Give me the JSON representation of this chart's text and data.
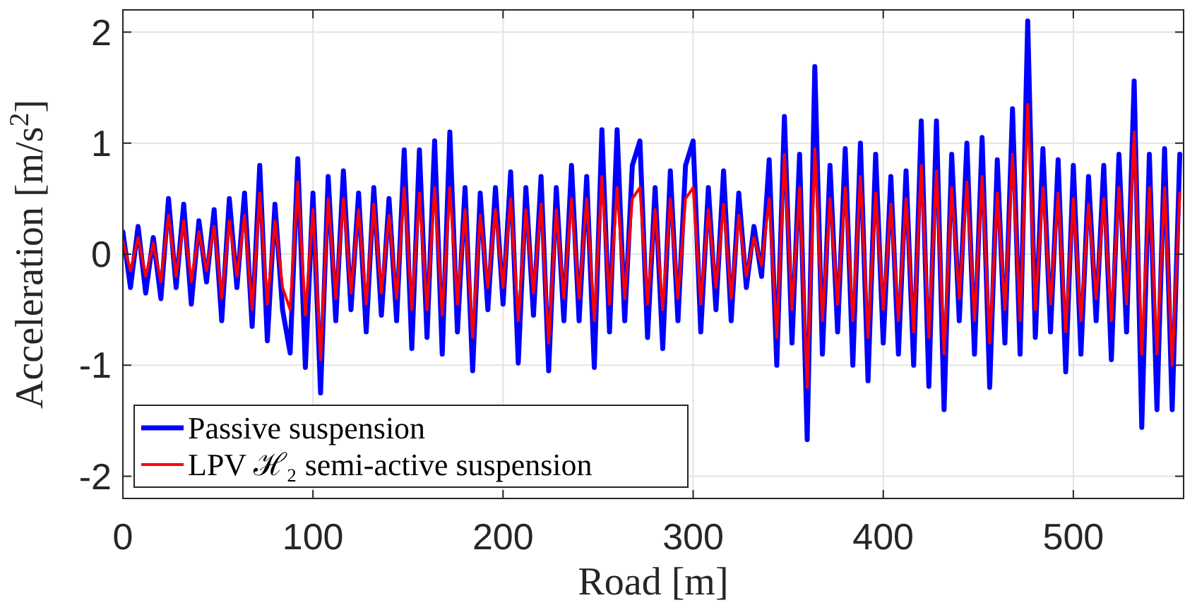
{
  "chart_data": {
    "type": "line",
    "xlabel": "Road [m]",
    "ylabel": "Acceleration [m/s$^{2}$]",
    "x": [
      0,
      4,
      8,
      12,
      16,
      20,
      24,
      28,
      32,
      36,
      40,
      44,
      48,
      52,
      56,
      60,
      64,
      68,
      72,
      76,
      80,
      84,
      88,
      92,
      96,
      100,
      104,
      108,
      112,
      116,
      120,
      124,
      128,
      132,
      136,
      140,
      144,
      148,
      152,
      156,
      160,
      164,
      168,
      172,
      176,
      180,
      184,
      188,
      192,
      196,
      200,
      204,
      208,
      212,
      216,
      220,
      224,
      228,
      232,
      236,
      240,
      244,
      248,
      252,
      256,
      260,
      264,
      268,
      272,
      276,
      280,
      284,
      288,
      292,
      296,
      300,
      304,
      308,
      312,
      316,
      320,
      324,
      328,
      332,
      336,
      340,
      344,
      348,
      352,
      356,
      360,
      364,
      368,
      372,
      376,
      380,
      384,
      388,
      392,
      396,
      400,
      404,
      408,
      412,
      416,
      420,
      424,
      428,
      432,
      436,
      440,
      444,
      448,
      452,
      456,
      460,
      464,
      468,
      472,
      476,
      480,
      484,
      488,
      492,
      496,
      500,
      504,
      508,
      512,
      516,
      520,
      524,
      528,
      532,
      536,
      540,
      544,
      548,
      552,
      556
    ],
    "series": [
      {
        "name": "Passive suspension",
        "color": "#0000ff",
        "values": [
          0.2,
          -0.3,
          0.25,
          -0.35,
          0.15,
          -0.4,
          0.5,
          -0.3,
          0.45,
          -0.45,
          0.3,
          -0.25,
          0.4,
          -0.6,
          0.5,
          -0.3,
          0.55,
          -0.65,
          0.8,
          -0.78,
          0.45,
          -0.5,
          -0.89,
          0.86,
          -1.02,
          0.55,
          -1.25,
          0.7,
          -0.6,
          0.75,
          -0.5,
          0.55,
          -0.7,
          0.6,
          -0.55,
          0.5,
          -0.6,
          0.94,
          -0.85,
          0.94,
          -0.75,
          1.02,
          -0.9,
          1.1,
          -0.7,
          0.6,
          -1.05,
          0.55,
          -0.5,
          0.6,
          -0.45,
          0.74,
          -0.98,
          0.6,
          -0.55,
          0.7,
          -1.05,
          0.6,
          -0.6,
          0.8,
          -0.6,
          0.7,
          -1.02,
          1.12,
          -0.7,
          1.12,
          -0.6,
          0.8,
          1.02,
          -0.75,
          0.6,
          -0.85,
          0.75,
          -0.6,
          0.8,
          1.02,
          -0.7,
          0.6,
          -0.5,
          0.75,
          -0.6,
          0.55,
          -0.3,
          0.25,
          -0.2,
          0.85,
          -1.0,
          1.24,
          -0.8,
          0.9,
          -1.67,
          1.69,
          -0.9,
          0.8,
          -0.7,
          0.95,
          -1.0,
          1.0,
          -1.14,
          0.9,
          -0.8,
          0.7,
          -0.9,
          0.75,
          -1.0,
          1.2,
          -1.19,
          1.2,
          -1.4,
          0.9,
          -0.6,
          1.0,
          -0.9,
          1.05,
          -1.2,
          0.85,
          -0.8,
          1.31,
          -0.9,
          2.1,
          -0.75,
          0.95,
          -0.7,
          0.85,
          -1.06,
          0.8,
          -0.9,
          0.7,
          -0.6,
          0.8,
          -0.95,
          0.9,
          -0.7,
          1.56,
          -1.56,
          0.9,
          -1.4,
          0.95,
          -1.4,
          0.9
        ]
      },
      {
        "name": "LPV ℋ₂ semi-active suspension",
        "color": "#ff0000",
        "values": [
          0.12,
          -0.15,
          0.15,
          -0.2,
          0.1,
          -0.25,
          0.35,
          -0.2,
          0.3,
          -0.25,
          0.2,
          -0.15,
          0.25,
          -0.4,
          0.3,
          -0.2,
          0.35,
          -0.5,
          0.55,
          -0.45,
          0.3,
          -0.3,
          -0.5,
          0.65,
          -0.55,
          0.4,
          -0.95,
          0.5,
          -0.4,
          0.5,
          -0.35,
          0.4,
          -0.45,
          0.45,
          -0.35,
          0.35,
          -0.4,
          0.6,
          -0.5,
          0.55,
          -0.5,
          0.6,
          -0.55,
          0.6,
          -0.45,
          0.4,
          -0.75,
          0.35,
          -0.3,
          0.4,
          -0.3,
          0.5,
          -0.6,
          0.4,
          -0.35,
          0.45,
          -0.8,
          0.4,
          -0.4,
          0.5,
          -0.4,
          0.5,
          -0.6,
          0.7,
          -0.45,
          0.6,
          -0.4,
          0.5,
          0.6,
          -0.45,
          0.4,
          -0.5,
          0.5,
          -0.4,
          0.5,
          0.6,
          -0.45,
          0.4,
          -0.3,
          0.45,
          -0.4,
          0.35,
          -0.2,
          0.15,
          -0.1,
          0.5,
          -0.75,
          0.9,
          -0.5,
          0.6,
          -1.2,
          0.95,
          -0.6,
          0.5,
          -0.45,
          0.6,
          -0.6,
          0.7,
          -0.75,
          0.55,
          -0.5,
          0.45,
          -0.6,
          0.5,
          -0.7,
          0.8,
          -0.75,
          0.75,
          -0.9,
          0.6,
          -0.4,
          0.65,
          -0.6,
          0.7,
          -0.8,
          0.55,
          -0.5,
          0.9,
          -0.6,
          1.35,
          -0.5,
          0.6,
          -0.45,
          0.55,
          -0.7,
          0.5,
          -0.6,
          0.45,
          -0.4,
          0.5,
          -0.6,
          0.6,
          -0.45,
          1.1,
          -0.9,
          0.6,
          -0.9,
          0.6,
          -1.0,
          0.55
        ]
      }
    ],
    "xlim": [
      0,
      558
    ],
    "xticks": [
      0,
      100,
      200,
      300,
      400,
      500
    ],
    "ylim": [
      -2.2,
      2.2
    ],
    "yticks": [
      -2,
      -1,
      0,
      1,
      2
    ],
    "grid": true,
    "legend": "bottom left",
    "marker": "none",
    "line_style": "solid"
  }
}
